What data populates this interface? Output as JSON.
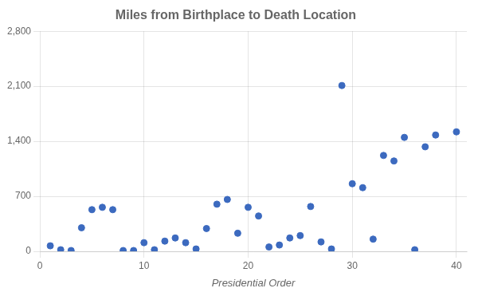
{
  "chart_data": {
    "type": "scatter",
    "title": "Miles from Birthplace to Death Location",
    "xlabel": "Presidential Order",
    "x": [
      1,
      2,
      3,
      4,
      5,
      6,
      7,
      8,
      9,
      10,
      11,
      12,
      13,
      14,
      15,
      16,
      17,
      18,
      19,
      20,
      21,
      22,
      23,
      24,
      25,
      26,
      27,
      28,
      29,
      30,
      31,
      32,
      33,
      34,
      35,
      36,
      37,
      38,
      40
    ],
    "values": [
      70,
      20,
      10,
      300,
      530,
      560,
      530,
      10,
      10,
      110,
      20,
      130,
      170,
      110,
      30,
      290,
      600,
      660,
      230,
      560,
      450,
      55,
      80,
      170,
      200,
      570,
      120,
      30,
      2110,
      860,
      810,
      155,
      1220,
      1150,
      1450,
      20,
      1330,
      1480,
      1520
    ],
    "color": "#3c6abf",
    "xlim": [
      0,
      41
    ],
    "ylim": [
      0,
      2800
    ],
    "xticks": [
      0,
      10,
      20,
      30,
      40
    ],
    "yticks": [
      0,
      700,
      1400,
      2100,
      2800
    ],
    "grid": true
  }
}
